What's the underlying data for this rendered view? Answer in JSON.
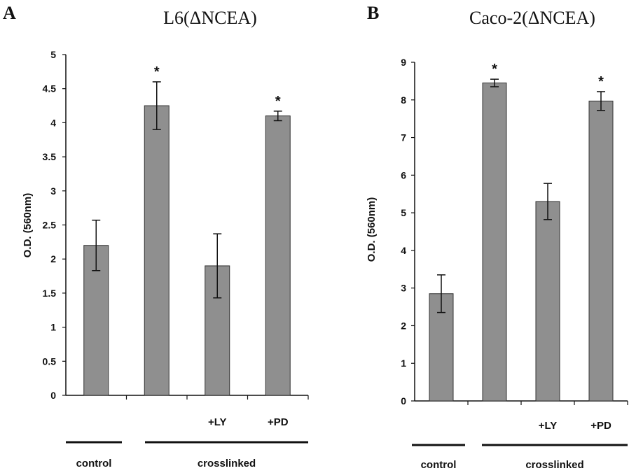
{
  "chart_data": [
    {
      "type": "bar",
      "panel": "A",
      "title": "L6(ΔNCEA)",
      "ylabel": "O.D. (560nm)",
      "ylim": [
        0,
        5
      ],
      "yticks": [
        "0",
        "0.5",
        "1",
        "1.5",
        "2",
        "2.5",
        "3",
        "3.5",
        "4",
        "4.5",
        "5"
      ],
      "categories": [
        "",
        "",
        "+LY",
        "+PD"
      ],
      "values": [
        2.2,
        4.25,
        1.9,
        4.1
      ],
      "errors": [
        0.37,
        0.35,
        0.47,
        0.07
      ],
      "significant": [
        "",
        "*",
        "",
        "*"
      ],
      "groups": [
        {
          "label": "control",
          "from": 0,
          "to": 0
        },
        {
          "label": "crosslinked",
          "from": 1,
          "to": 3
        }
      ],
      "bar_color": "#8f8f8f"
    },
    {
      "type": "bar",
      "panel": "B",
      "title": "Caco-2(ΔNCEA)",
      "ylabel": "O.D. (560nm)",
      "ylim": [
        0,
        9
      ],
      "yticks": [
        "0",
        "1",
        "2",
        "3",
        "4",
        "5",
        "6",
        "7",
        "8",
        "9"
      ],
      "categories": [
        "",
        "",
        "+LY",
        "+PD"
      ],
      "values": [
        2.85,
        8.45,
        5.3,
        7.97
      ],
      "errors": [
        0.5,
        0.1,
        0.48,
        0.25
      ],
      "significant": [
        "",
        "*",
        "",
        "*"
      ],
      "groups": [
        {
          "label": "control",
          "from": 0,
          "to": 0
        },
        {
          "label": "crosslinked",
          "from": 1,
          "to": 3
        }
      ],
      "bar_color": "#8f8f8f"
    }
  ]
}
